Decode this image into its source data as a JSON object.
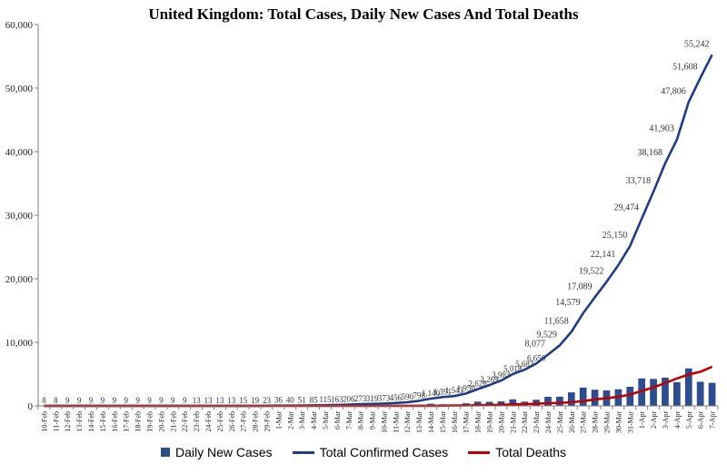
{
  "chart_data": {
    "type": "bar+line",
    "title": "United Kingdom: Total Cases, Daily New Cases And Total Deaths",
    "ylim": [
      0,
      60000
    ],
    "yticks": [
      0,
      10000,
      20000,
      30000,
      40000,
      50000,
      60000
    ],
    "ytick_labels": [
      "0",
      "10,000",
      "20,000",
      "30,000",
      "40,000",
      "50,000",
      "60,000"
    ],
    "grid": false,
    "legend_position": "bottom",
    "categories": [
      "10-Feb",
      "11-Feb",
      "12-Feb",
      "13-Feb",
      "14-Feb",
      "15-Feb",
      "16-Feb",
      "17-Feb",
      "18-Feb",
      "19-Feb",
      "20-Feb",
      "21-Feb",
      "22-Feb",
      "23-Feb",
      "24-Feb",
      "25-Feb",
      "26-Feb",
      "27-Feb",
      "28-Feb",
      "29-Feb",
      "1-Mar",
      "2-Mar",
      "3-Mar",
      "4-Mar",
      "5-Mar",
      "6-Mar",
      "7-Mar",
      "8-Mar",
      "9-Mar",
      "10-Mar",
      "11-Mar",
      "12-Mar",
      "13-Mar",
      "14-Mar",
      "15-Mar",
      "16-Mar",
      "17-Mar",
      "18-Mar",
      "19-Mar",
      "20-Mar",
      "21-Mar",
      "22-Mar",
      "23-Mar",
      "24-Mar",
      "25-Mar",
      "26-Mar",
      "27-Mar",
      "28-Mar",
      "29-Mar",
      "30-Mar",
      "31-Mar",
      "1-Apr",
      "2-Apr",
      "3-Apr",
      "4-Apr",
      "5-Apr",
      "6-Apr",
      "7-Apr"
    ],
    "series": [
      {
        "name": "Daily New Cases",
        "kind": "bar",
        "color": "#2e4d8f",
        "values": [
          0,
          0,
          0,
          0,
          0,
          0,
          0,
          0,
          0,
          0,
          0,
          0,
          0,
          0,
          0,
          0,
          0,
          0,
          4,
          3,
          13,
          4,
          12,
          34,
          30,
          48,
          43,
          67,
          46,
          50,
          83,
          134,
          208,
          342,
          251,
          152,
          407,
          676,
          643,
          714,
          1035,
          665,
          967,
          1427,
          1452,
          2129,
          2885,
          2546,
          2433,
          2619,
          3009,
          4324,
          4244,
          4450,
          3735,
          5903,
          3802,
          3634
        ]
      },
      {
        "name": "Total Confirmed Cases",
        "kind": "line",
        "color": "#1f3c88",
        "values": [
          8,
          8,
          9,
          9,
          9,
          9,
          9,
          9,
          9,
          9,
          9,
          9,
          9,
          13,
          13,
          13,
          13,
          15,
          19,
          23,
          36,
          40,
          51,
          85,
          115,
          163,
          206,
          273,
          319,
          373,
          456,
          590,
          798,
          1140,
          1391,
          1543,
          1950,
          2626,
          3269,
          3983,
          5018,
          5683,
          6650,
          8077,
          9529,
          11658,
          14579,
          17089,
          19522,
          22141,
          25150,
          29474,
          33718,
          38168,
          41903,
          47806,
          51608,
          55242
        ],
        "data_labels": [
          "8",
          "8",
          "9",
          "9",
          "9",
          "9",
          "9",
          "9",
          "9",
          "9",
          "9",
          "9",
          "9",
          "13",
          "13",
          "13",
          "13",
          "15",
          "19",
          "23",
          "36",
          "40",
          "51",
          "85",
          "115",
          "163",
          "206",
          "273",
          "319",
          "373",
          "456",
          "590",
          "798",
          "1,140",
          "1,391",
          "1,543",
          "1,950",
          "2,626",
          "3,269",
          "3,983",
          "5,018",
          "5,683",
          "6,650",
          "8,077",
          "9,529",
          "11,658",
          "14,579",
          "17,089",
          "19,522",
          "22,141",
          "25,150",
          "29,474",
          "33,718",
          "38,168",
          "41,903",
          "47,806",
          "51,608",
          "55,242"
        ]
      },
      {
        "name": "Total Deaths",
        "kind": "line",
        "color": "#c00000",
        "values": [
          0,
          0,
          0,
          0,
          0,
          0,
          0,
          0,
          0,
          0,
          0,
          0,
          0,
          0,
          0,
          0,
          0,
          0,
          0,
          0,
          0,
          0,
          0,
          0,
          1,
          2,
          2,
          3,
          4,
          6,
          8,
          8,
          8,
          21,
          35,
          55,
          71,
          104,
          144,
          177,
          233,
          281,
          335,
          422,
          465,
          578,
          759,
          1019,
          1228,
          1408,
          1789,
          2352,
          2921,
          3605,
          4313,
          4934,
          5373,
          6159
        ]
      }
    ]
  }
}
